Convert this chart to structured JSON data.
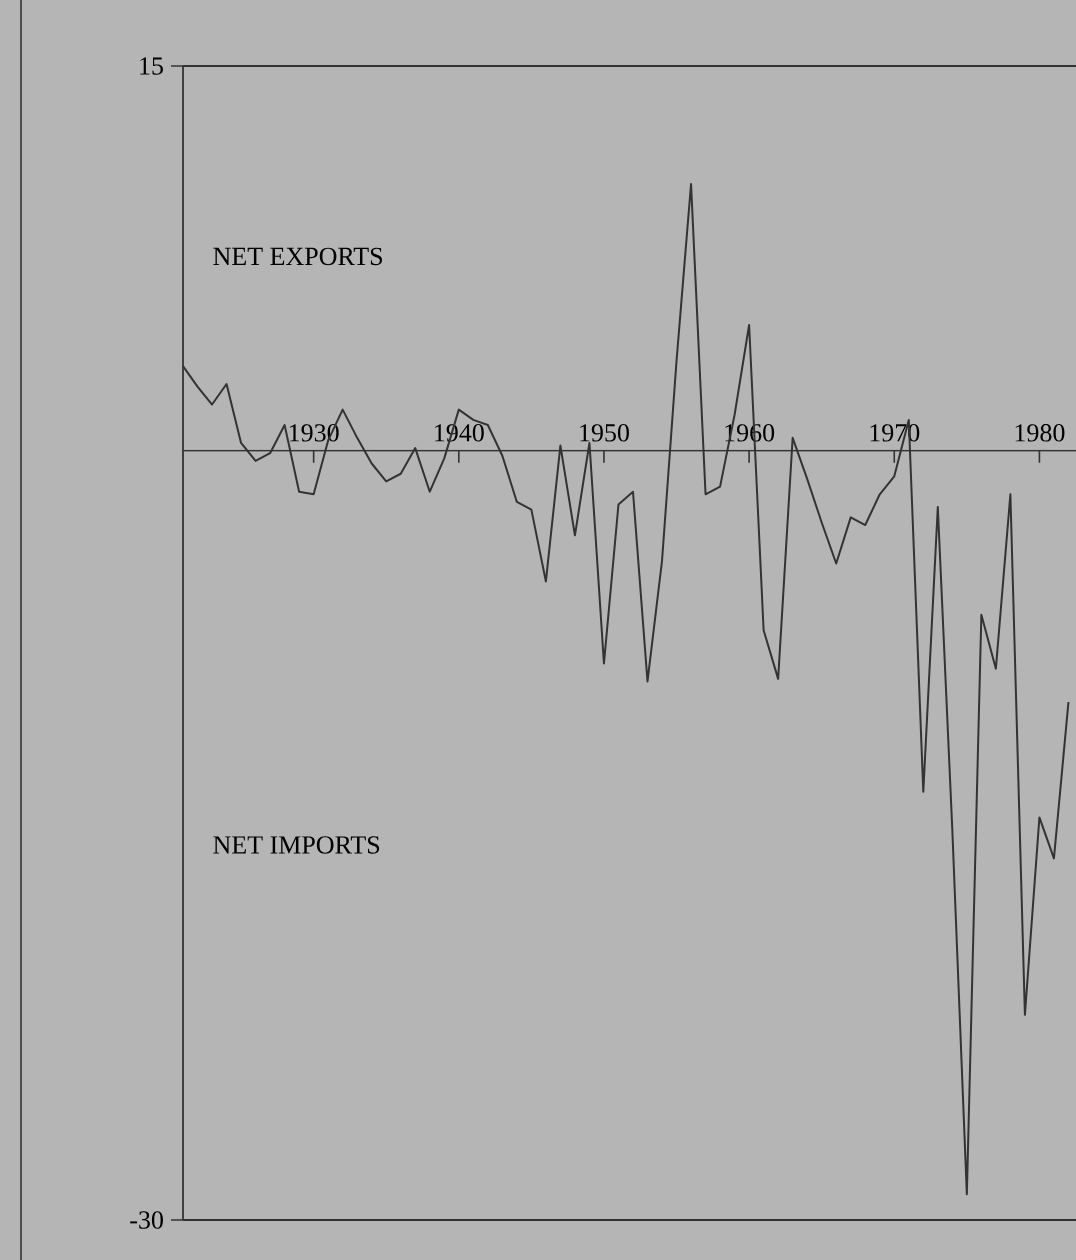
{
  "chart_data": {
    "type": "line",
    "color": "#333333",
    "x": [
      1921,
      1922,
      1923,
      1924,
      1925,
      1926,
      1927,
      1928,
      1929,
      1930,
      1931,
      1932,
      1933,
      1934,
      1935,
      1936,
      1937,
      1938,
      1939,
      1940,
      1941,
      1942,
      1943,
      1944,
      1945,
      1946,
      1947,
      1948,
      1949,
      1950,
      1951,
      1952,
      1953,
      1954,
      1955,
      1956,
      1957,
      1958,
      1959,
      1960,
      1961,
      1962,
      1963,
      1964,
      1965,
      1966,
      1967,
      1968,
      1969,
      1970,
      1971,
      1972,
      1973,
      1974,
      1975,
      1976,
      1977,
      1978,
      1979,
      1980,
      1981,
      1982
    ],
    "values": [
      3.3,
      2.5,
      1.8,
      2.6,
      0.3,
      -0.4,
      -0.1,
      1.0,
      -1.6,
      -1.7,
      0.4,
      1.6,
      0.5,
      -0.5,
      -1.2,
      -0.9,
      0.1,
      -1.6,
      -0.3,
      1.6,
      1.2,
      1.0,
      -0.2,
      -2.0,
      -2.3,
      -5.1,
      0.2,
      -3.3,
      0.3,
      -8.3,
      -2.1,
      -1.6,
      -9.0,
      -4.3,
      3.5,
      10.4,
      -1.7,
      -1.4,
      1.4,
      4.9,
      -7.0,
      -8.9,
      0.5,
      -1.1,
      -2.8,
      -4.4,
      -2.6,
      -2.9,
      -1.7,
      -1.0,
      1.2,
      -13.3,
      -2.2,
      -14.8,
      -29.0,
      -6.4,
      -8.5,
      -1.7,
      -22.0,
      -14.3,
      -15.9,
      -9.8
    ],
    "xlim": [
      1921,
      1983
    ],
    "ylim": [
      -30,
      15
    ],
    "xticks": [
      1930,
      1940,
      1950,
      1960,
      1970,
      1980
    ],
    "yticks": [
      -30,
      15
    ],
    "annotations": [
      "NET EXPORTS",
      "NET IMPORTS"
    ],
    "grid": false,
    "marker": "none",
    "line_style": "solid"
  }
}
